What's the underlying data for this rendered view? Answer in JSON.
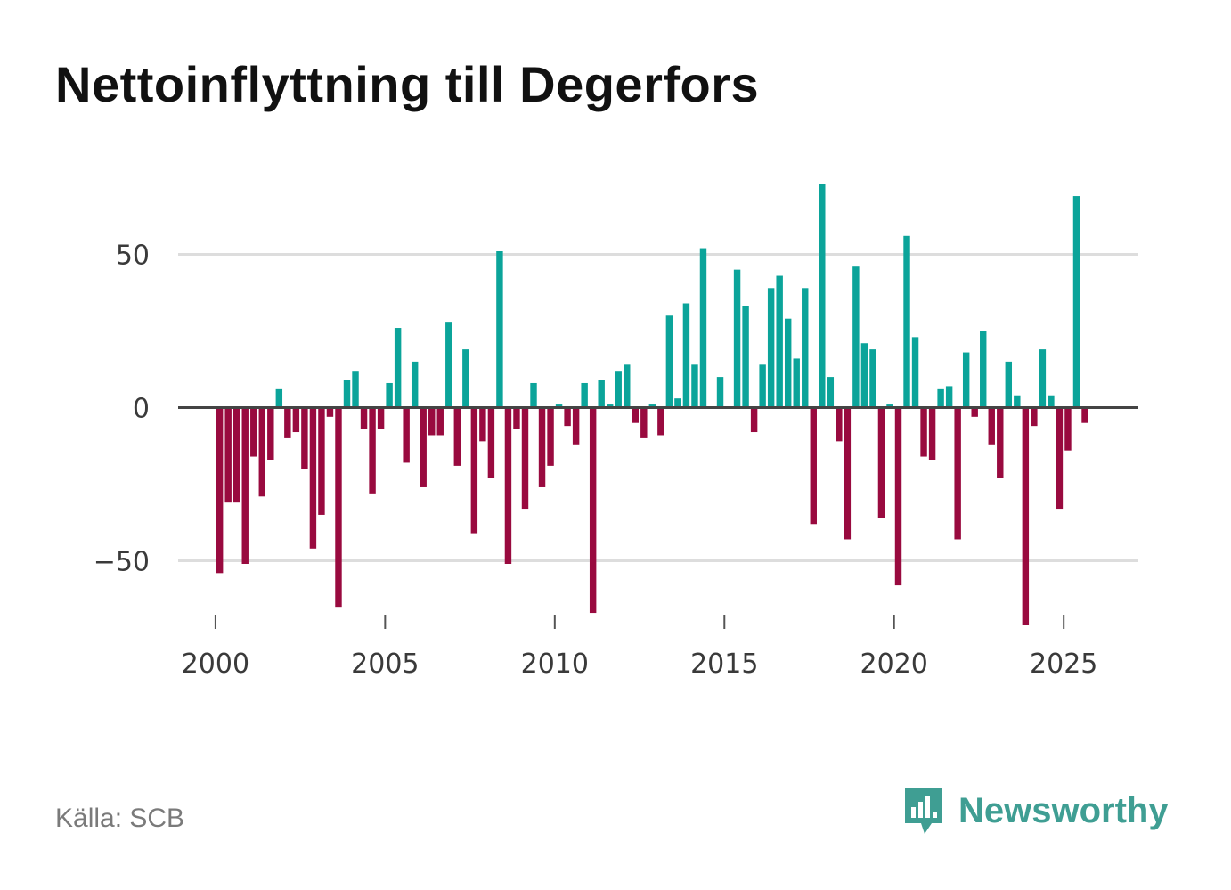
{
  "title": "Nettoinflyttning till Degerfors",
  "source": "Källa: SCB",
  "brand": "Newsworthy",
  "colors": {
    "positive": "#0ba49a",
    "negative": "#990a3f",
    "grid": "#dddddd",
    "zero": "#444444",
    "brand": "#3f9e93"
  },
  "chart_data": {
    "type": "bar",
    "title": "Nettoinflyttning till Degerfors",
    "xlabel": "",
    "ylabel": "",
    "ylim": [
      -85,
      85
    ],
    "xlim": [
      1998.9,
      2027.2
    ],
    "yticks": [
      50,
      0,
      -50
    ],
    "ytick_labels": [
      "50",
      "0",
      "−50"
    ],
    "xticks": [
      2000,
      2005,
      2010,
      2015,
      2020,
      2025
    ],
    "xtick_labels": [
      "2000",
      "2005",
      "2010",
      "2015",
      "2020",
      "2025"
    ],
    "start": 2000.125,
    "step": 0.25,
    "values": [
      -54,
      -31,
      -31,
      -51,
      -16,
      -29,
      -17,
      6,
      -10,
      -8,
      -20,
      -46,
      -35,
      -3,
      -65,
      9,
      12,
      -7,
      -28,
      -7,
      8,
      26,
      -18,
      15,
      -26,
      -9,
      -9,
      28,
      -19,
      19,
      -41,
      -11,
      -23,
      51,
      -51,
      -7,
      -33,
      8,
      -26,
      -19,
      1,
      -6,
      -12,
      8,
      -67,
      9,
      1,
      12,
      14,
      -5,
      -10,
      1,
      -9,
      30,
      3,
      34,
      14,
      52,
      0,
      10,
      0,
      45,
      33,
      -8,
      14,
      39,
      43,
      29,
      16,
      39,
      -38,
      73,
      10,
      -11,
      -43,
      46,
      21,
      19,
      -36,
      1,
      -58,
      56,
      23,
      -16,
      -17,
      6,
      7,
      -43,
      18,
      -3,
      25,
      -12,
      -23,
      15,
      4,
      -71,
      -6,
      19,
      4,
      -33,
      -14,
      69,
      -5
    ]
  }
}
